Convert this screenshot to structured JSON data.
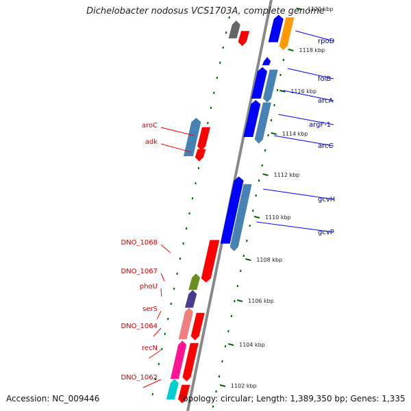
{
  "title": "Dichelobacter nodosus VCS1703A, complete genome",
  "accession": "Accession: NC_009446",
  "topology": "Topology: circular; Length: 1,389,350 bp; Genes: 1,335",
  "ticks": [
    "1120 kbp",
    "1118 kbp",
    "1116 kbp",
    "1114 kbp",
    "1112 kbp",
    "1110 kbp",
    "1108 kbp",
    "1106 kbp",
    "1104 kbp",
    "1102 kbp"
  ],
  "colors": {
    "forward_red": "#ff0000",
    "reverse_blue": "#0000ff",
    "steelblue": "#4682b4",
    "backbone": "#888888",
    "tick_green": "#006400",
    "label_red": "#cc0000",
    "label_blue": "#000099"
  },
  "genes_right": [
    "rpoD",
    "folB",
    "arcA",
    "argF-1",
    "arcC",
    "gcvH",
    "gcvP"
  ],
  "genes_left": [
    "aroC",
    "adk",
    "DNO_1068",
    "DNO_1067",
    "phoU",
    "serS",
    "DNO_1064",
    "recN",
    "DNO_1062"
  ]
}
